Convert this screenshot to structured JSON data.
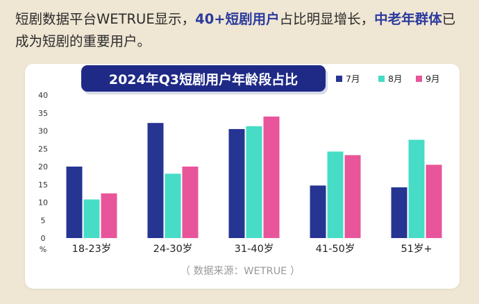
{
  "intro": {
    "part1": "短剧数据平台WETRUE显示，",
    "part2": "40+短剧用户",
    "part3": "占比明显增长，",
    "part4": "中老年群体",
    "part5": "已成为短剧的重要用户。"
  },
  "colors": {
    "background": "#efe6d3",
    "accent": "#2a3a9e",
    "title_box": "#1f2a86"
  },
  "chart_data": {
    "type": "bar",
    "title": "2024年Q3短剧用户年龄段占比",
    "ylabel": "%",
    "ylim": [
      0,
      40
    ],
    "yticks": [
      0,
      5,
      10,
      15,
      20,
      25,
      30,
      35,
      40
    ],
    "grid": false,
    "legend_position": "top-right",
    "categories": [
      "18-23岁",
      "24-30岁",
      "31-40岁",
      "41-50岁",
      "51岁+"
    ],
    "series": [
      {
        "name": "7月",
        "color": "#263592",
        "values": [
          20,
          32.2,
          30.5,
          14.7,
          14.2
        ]
      },
      {
        "name": "8月",
        "color": "#46dcc6",
        "values": [
          10.8,
          18,
          31.3,
          24.2,
          27.5
        ]
      },
      {
        "name": "9月",
        "color": "#e8559a",
        "values": [
          12.5,
          20,
          34,
          23.2,
          20.5
        ]
      }
    ],
    "source": "（ 数据来源：WETRUE ）"
  }
}
